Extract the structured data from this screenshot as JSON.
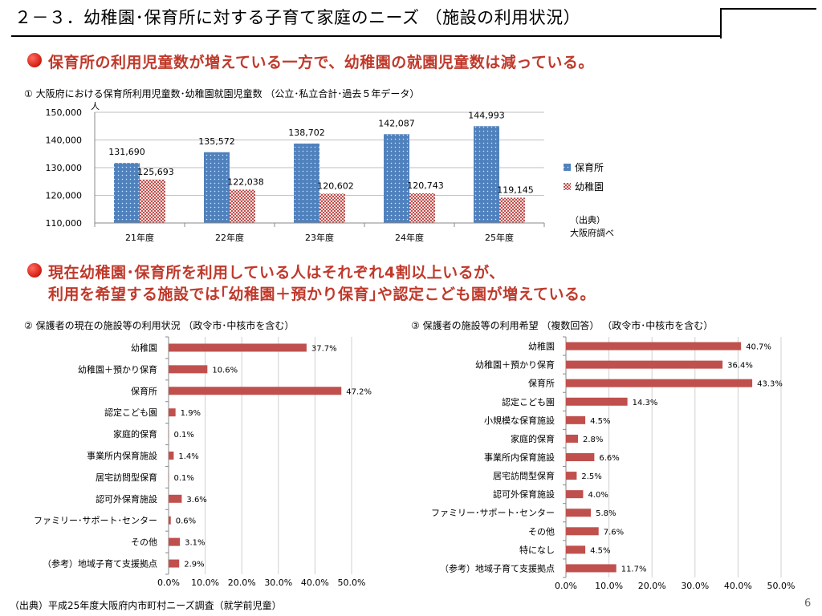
{
  "slide": {
    "title": "２－３．幼稚園･保育所に対する子育て家庭のニーズ （施設の利用状況）",
    "headline1": "保育所の利用児童数が増えている一方で、幼稚園の就園児童数は減っている。",
    "headline2_line1": "現在幼稚園･保育所を利用している人はそれぞれ4割以上いるが、",
    "headline2_line2": "利用を希望する施設では｢幼稚園＋預かり保育｣や認定こども園が増えている。",
    "footer": "（出典）平成25年度大阪府内市町村ニーズ調査（就学前児童）",
    "page_number": "6",
    "colors": {
      "accent": "#c0392b",
      "nursery": "#4f81bd",
      "kinder": "#c0504d",
      "hbar": "#c0504d"
    }
  },
  "chart_data": [
    {
      "type": "bar",
      "title": "① 大阪府における保育所利用児童数･幼稚園就園児童数 （公立･私立合計･過去５年データ）",
      "ylabel": "人",
      "categories": [
        "21年度",
        "22年度",
        "23年度",
        "24年度",
        "25年度"
      ],
      "series": [
        {
          "name": "保育所",
          "values": [
            131690,
            135572,
            138702,
            142087,
            144993
          ],
          "labels": [
            "131,690",
            "135,572",
            "138,702",
            "142,087",
            "144,993"
          ]
        },
        {
          "name": "幼稚園",
          "values": [
            125693,
            122038,
            120602,
            120743,
            119145
          ],
          "labels": [
            "125,693",
            "122,038",
            "120,602",
            "120,743",
            "119,145"
          ]
        }
      ],
      "ylim": [
        110000,
        150000
      ],
      "yticks": [
        "110,000",
        "120,000",
        "130,000",
        "140,000",
        "150,000"
      ],
      "legend_position": "right",
      "source_line1": "（出典）",
      "source_line2": "大阪府調べ"
    },
    {
      "type": "bar",
      "orientation": "horizontal",
      "title": "② 保護者の現在の施設等の利用状況 （政令市･中核市を含む）",
      "categories": [
        "幼稚園",
        "幼稚園＋預かり保育",
        "保育所",
        "認定こども園",
        "家庭的保育",
        "事業所内保育施設",
        "居宅訪問型保育",
        "認可外保育施設",
        "ファミリー･サポート･センター",
        "その他",
        "（参考）地域子育て支援拠点"
      ],
      "values": [
        37.7,
        10.6,
        47.2,
        1.9,
        0.1,
        1.4,
        0.1,
        3.6,
        0.6,
        3.1,
        2.9
      ],
      "labels": [
        "37.7%",
        "10.6%",
        "47.2%",
        "1.9%",
        "0.1%",
        "1.4%",
        "0.1%",
        "3.6%",
        "0.6%",
        "3.1%",
        "2.9%"
      ],
      "xlim": [
        0,
        50
      ],
      "xticks": [
        "0.0%",
        "10.0%",
        "20.0%",
        "30.0%",
        "40.0%",
        "50.0%"
      ]
    },
    {
      "type": "bar",
      "orientation": "horizontal",
      "title": "③ 保護者の施設等の利用希望 （複数回答） （政令市･中核市を含む）",
      "categories": [
        "幼稚園",
        "幼稚園＋預かり保育",
        "保育所",
        "認定こども園",
        "小規模な保育施設",
        "家庭的保育",
        "事業所内保育施設",
        "居宅訪問型保育",
        "認可外保育施設",
        "ファミリー･サポート･センター",
        "その他",
        "特になし",
        "（参考）地域子育て支援拠点"
      ],
      "values": [
        40.7,
        36.4,
        43.3,
        14.3,
        4.5,
        2.8,
        6.6,
        2.5,
        4.0,
        5.8,
        7.6,
        4.5,
        11.7
      ],
      "labels": [
        "40.7%",
        "36.4%",
        "43.3%",
        "14.3%",
        "4.5%",
        "2.8%",
        "6.6%",
        "2.5%",
        "4.0%",
        "5.8%",
        "7.6%",
        "4.5%",
        "11.7%"
      ],
      "xlim": [
        0,
        50
      ],
      "xticks": [
        "0.0%",
        "10.0%",
        "20.0%",
        "30.0%",
        "40.0%",
        "50.0%"
      ]
    }
  ]
}
